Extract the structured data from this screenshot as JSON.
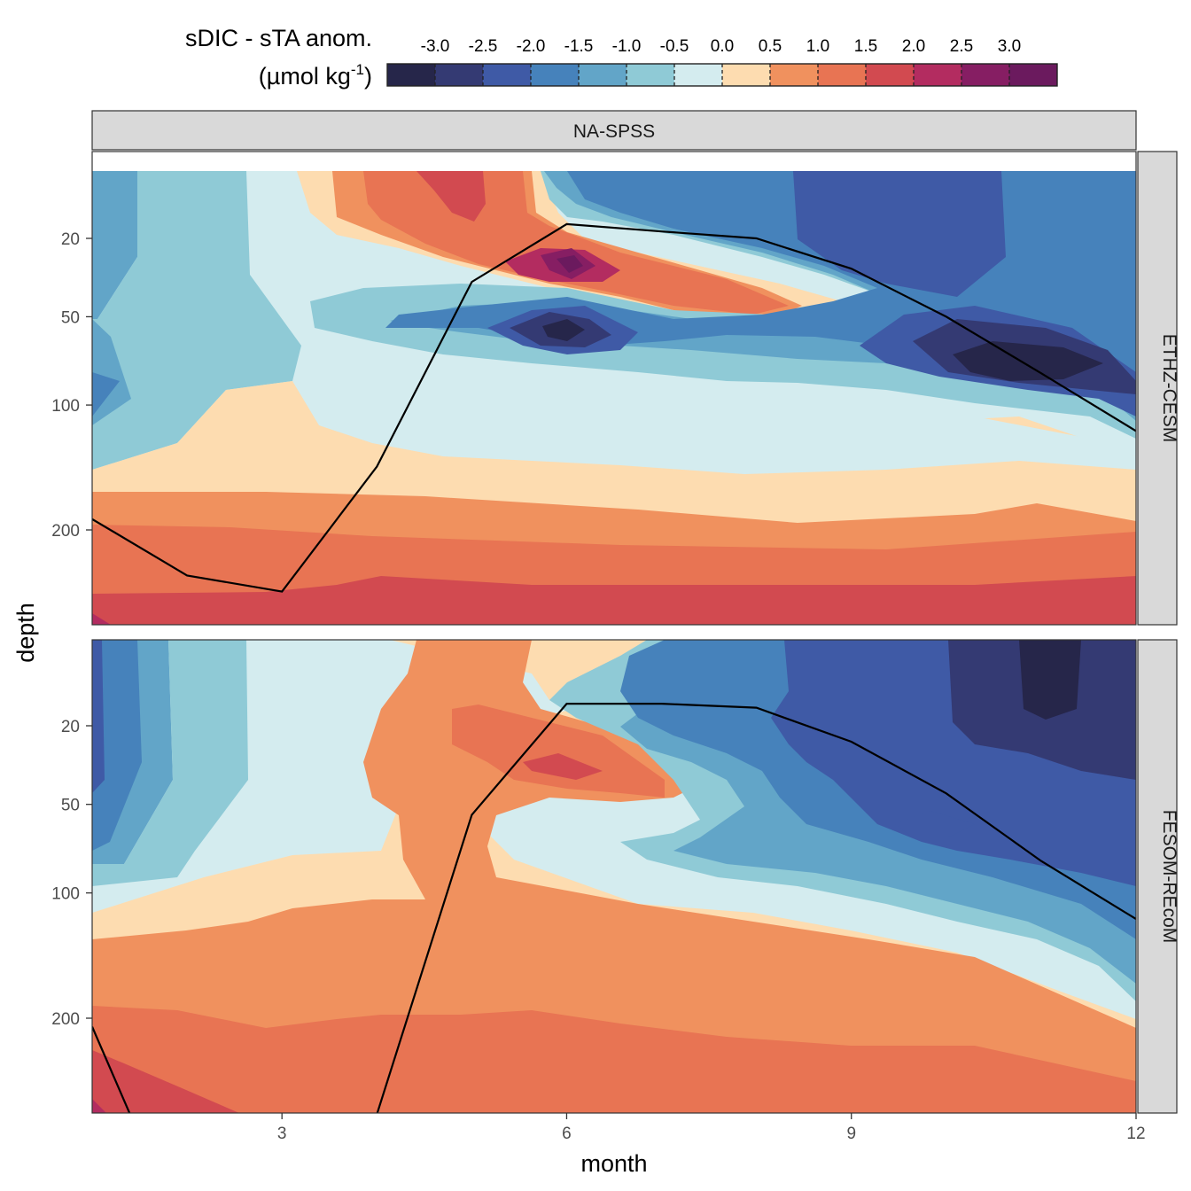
{
  "chart_data": {
    "type": "heatmap",
    "facet_title": "NA-SPSS",
    "xlabel": "month",
    "ylabel": "depth",
    "x_ticks": [
      "3",
      "6",
      "9",
      "12"
    ],
    "x_tick_values": [
      3,
      6,
      9,
      12
    ],
    "y_ticks": [
      "20",
      "50",
      "100",
      "200"
    ],
    "y_tick_values": [
      20,
      50,
      100,
      200
    ],
    "xlim": [
      1,
      12
    ],
    "ylim": [
      0,
      300
    ],
    "legend": {
      "title_line1": "sDIC - sTA anom.",
      "title_line2": "(µmol kg",
      "title_sup": "-1",
      "title_close": ")",
      "tick_labels": [
        "-3.0",
        "-2.5",
        "-2.0",
        "-1.5",
        "-1.0",
        "-0.5",
        "0.0",
        "0.5",
        "1.0",
        "1.5",
        "2.0",
        "2.5",
        "3.0"
      ],
      "colors": [
        "#26264a",
        "#343a73",
        "#3f5aa6",
        "#4682bb",
        "#62a5c8",
        "#8fcad6",
        "#d4ecef",
        "#fddcb0",
        "#f0915e",
        "#e87453",
        "#d24a50",
        "#b32c60",
        "#861e63",
        "#6b1a5e"
      ],
      "placement": "top"
    },
    "panels": [
      {
        "label": "ETHZ-CESM",
        "mld_line": [
          [
            1,
            190
          ],
          [
            2,
            245
          ],
          [
            3,
            262
          ],
          [
            4,
            145
          ],
          [
            5,
            35
          ],
          [
            6,
            16
          ],
          [
            7,
            18
          ],
          [
            8,
            20
          ],
          [
            9,
            30
          ],
          [
            10,
            50
          ],
          [
            11,
            80
          ],
          [
            12,
            118
          ]
        ]
      },
      {
        "label": "FESOM-REcoM",
        "mld_line": [
          [
            1,
            208
          ],
          [
            1.4,
            300
          ],
          [
            4,
            300
          ],
          [
            5,
            55
          ],
          [
            6,
            14
          ],
          [
            7,
            14
          ],
          [
            8,
            15
          ],
          [
            9,
            25
          ],
          [
            10,
            45
          ],
          [
            11,
            80
          ],
          [
            12,
            118
          ]
        ]
      }
    ]
  }
}
